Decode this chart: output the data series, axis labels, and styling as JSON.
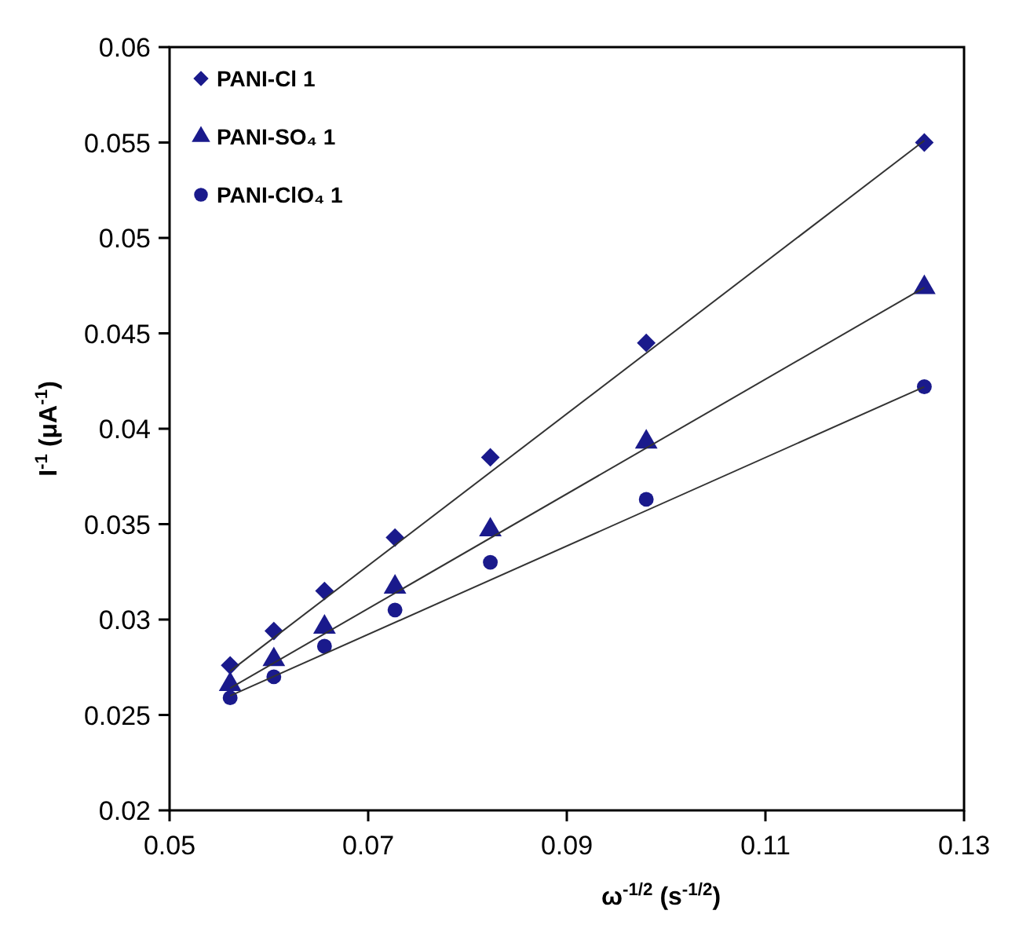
{
  "chart_data": {
    "type": "scatter",
    "xlabel": "ω$^{-1/2}$ (s$^{-1/2}$)",
    "ylabel": "I$^{-1}$ (μA$^{-1}$)",
    "xlim": [
      0.05,
      0.13
    ],
    "xticks": [
      0.05,
      0.07,
      0.09,
      0.11,
      0.13
    ],
    "ylim": [
      0.02,
      0.06
    ],
    "yticks": [
      0.02,
      0.025,
      0.03,
      0.035,
      0.04,
      0.045,
      0.05,
      0.055,
      0.06
    ],
    "grid": false,
    "legend": "top left",
    "series": [
      {
        "name": "PANI-Cl 1",
        "color": "#1a1a8c",
        "marker": "diamond",
        "x": [
          0.0561,
          0.0605,
          0.0656,
          0.0727,
          0.0823,
          0.098,
          0.126
        ],
        "values": [
          0.0276,
          0.0294,
          0.0315,
          0.0343,
          0.0385,
          0.0445,
          0.055
        ]
      },
      {
        "name": "PANI-SO₄ 1",
        "color": "#1a1a8c",
        "marker": "triangle",
        "x": [
          0.0561,
          0.0605,
          0.0656,
          0.0727,
          0.0823,
          0.098,
          0.126
        ],
        "values": [
          0.0266,
          0.0279,
          0.0296,
          0.0317,
          0.0347,
          0.0393,
          0.0474
        ]
      },
      {
        "name": "PANI-ClO₄ 1",
        "color": "#1a1a8c",
        "marker": "circle",
        "x": [
          0.0561,
          0.0605,
          0.0656,
          0.0727,
          0.0823,
          0.098,
          0.126
        ],
        "values": [
          0.0259,
          0.027,
          0.0286,
          0.0305,
          0.033,
          0.0363,
          0.0422
        ]
      },
      {
        "type": "line",
        "color": "#333333",
        "marker": "none",
        "x": [
          0.0561,
          0.126
        ],
        "values": [
          0.0273,
          0.0551
        ]
      },
      {
        "type": "line",
        "color": "#333333",
        "marker": "none",
        "x": [
          0.0561,
          0.126
        ],
        "values": [
          0.0264,
          0.0474
        ]
      },
      {
        "type": "line",
        "color": "#333333",
        "marker": "none",
        "x": [
          0.0561,
          0.126
        ],
        "values": [
          0.026,
          0.0422
        ]
      }
    ]
  }
}
